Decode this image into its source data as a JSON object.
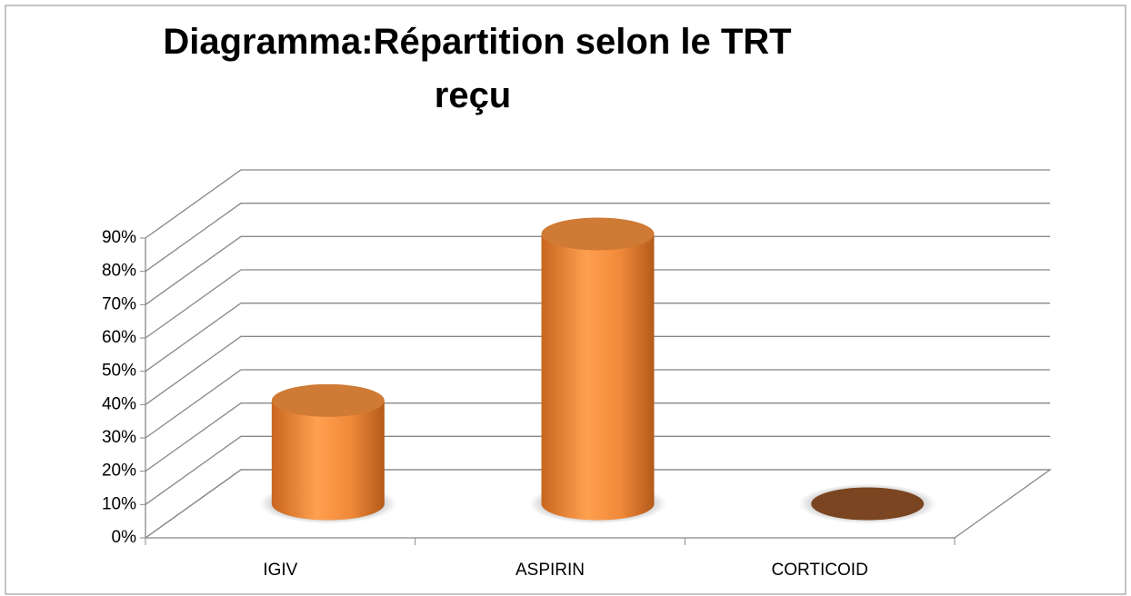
{
  "chart_data": {
    "type": "bar3d",
    "title": "Diagramma:Répartition selon le TRT reçu",
    "categories": [
      "IGIV",
      "ASPIRIN",
      "CORTICOID"
    ],
    "values": [
      31,
      81,
      0
    ],
    "color": "#f79646",
    "ylim": [
      0,
      90
    ],
    "yticks": [
      {
        "value": 0,
        "label": "0%"
      },
      {
        "value": 10,
        "label": "10%"
      },
      {
        "value": 20,
        "label": "20%"
      },
      {
        "value": 30,
        "label": "30%"
      },
      {
        "value": 40,
        "label": "40%"
      },
      {
        "value": 50,
        "label": "50%"
      },
      {
        "value": 60,
        "label": "60%"
      },
      {
        "value": 70,
        "label": "70%"
      },
      {
        "value": 80,
        "label": "80%"
      },
      {
        "value": 90,
        "label": "90%"
      }
    ],
    "grid": true
  }
}
